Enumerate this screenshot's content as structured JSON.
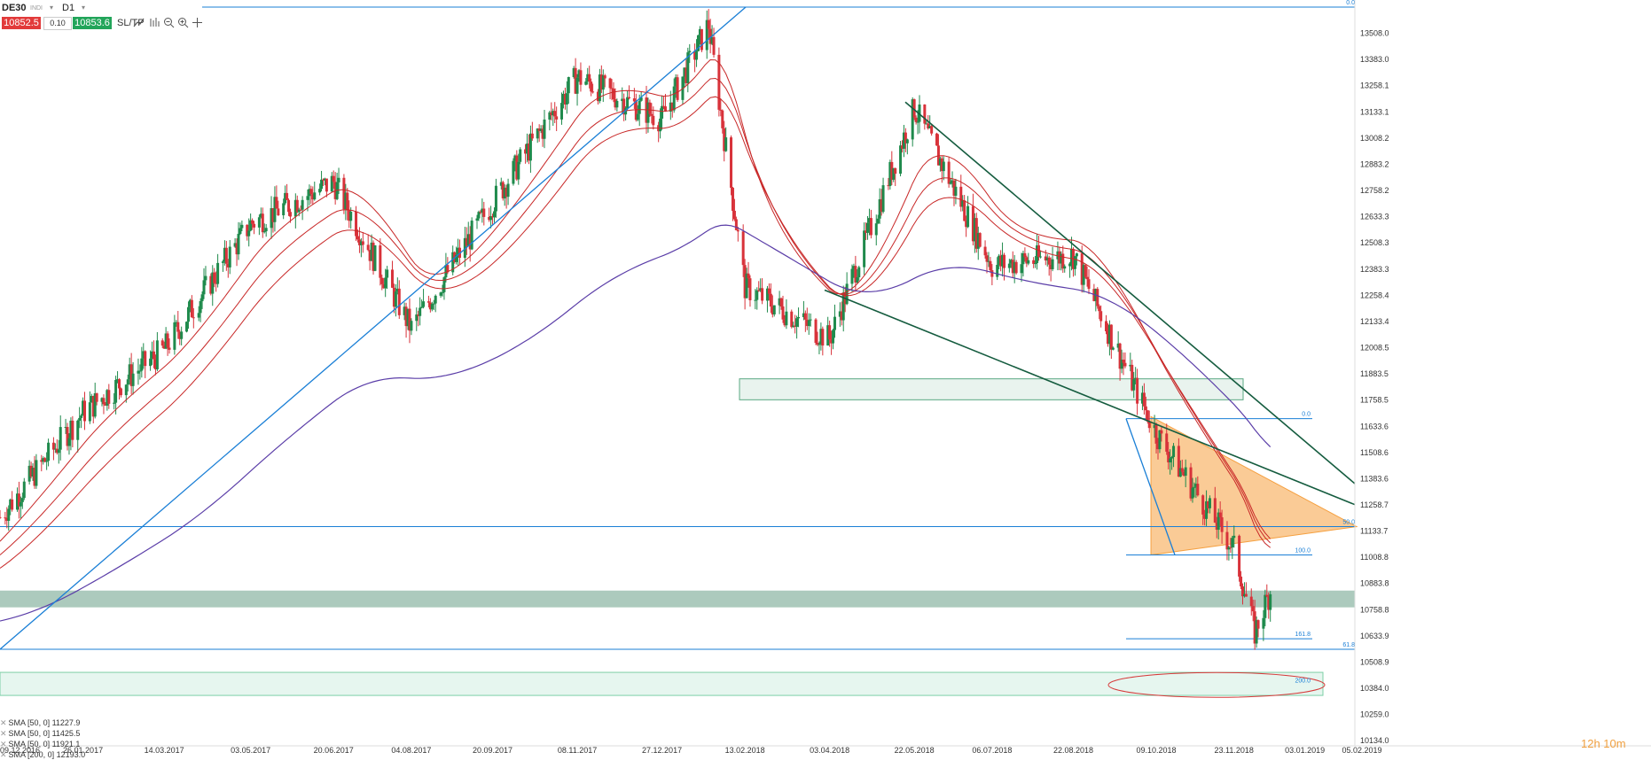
{
  "toolbar": {
    "symbol": "DE30",
    "symbol_sub": "INDI",
    "timeframe": "D1",
    "sell_price": "10852.5",
    "quantity": "0.10",
    "buy_price": "10853.6",
    "sltp_label": "SL/TP",
    "icons": [
      "line-tool-icon",
      "indicators-icon",
      "zoom-out-icon",
      "zoom-in-icon",
      "crosshair-icon"
    ]
  },
  "legend": [
    {
      "label": "SMA [50, 0] 11227.9"
    },
    {
      "label": "SMA [50, 0] 11425.5"
    },
    {
      "label": "SMA [50, 0] 11921.1"
    },
    {
      "label": "SMA [200, 0] 12193.0"
    }
  ],
  "timer": {
    "value": "12h 10m"
  },
  "colors": {
    "bull": "#1f8a4c",
    "bear": "#d8323a",
    "blue_line": "#1a7fd6",
    "dark_green": "#155c3f",
    "sma_red": "#c82828",
    "sma_purple": "#5b3ea8",
    "orange": "#f5a040",
    "support": "#7fad99",
    "ellipse": "#d63a3a"
  },
  "chart_data": {
    "type": "candlestick",
    "title": "",
    "xlabel": "",
    "ylabel": "",
    "ylim": [
      10134.9,
      13633.0
    ],
    "y_ticks": [
      "13508.0",
      "13383.0",
      "13258.1",
      "13133.1",
      "13008.2",
      "12883.2",
      "12758.2",
      "12633.3",
      "12508.3",
      "12383.3",
      "12258.4",
      "12133.4",
      "12008.5",
      "11883.5",
      "11758.5",
      "11633.6",
      "11508.6",
      "11383.6",
      "11258.7",
      "11133.7",
      "11008.8",
      "10883.8",
      "10758.8",
      "10633.9",
      "10508.9",
      "10384.0",
      "10259.0",
      "10134.0"
    ],
    "x_ticks": [
      "09.12.2016",
      "26.01.2017",
      "14.03.2017",
      "03.05.2017",
      "20.06.2017",
      "04.08.2017",
      "20.09.2017",
      "08.11.2017",
      "27.12.2017",
      "13.02.2018",
      "03.04.2018",
      "22.05.2018",
      "06.07.2018",
      "22.08.2018",
      "09.10.2018",
      "23.11.2018",
      "03.01.2019",
      "05.02.2019"
    ],
    "price_path": [
      [
        "09.12.2016",
        11200
      ],
      [
        "26.01.2017",
        11700
      ],
      [
        "14.03.2017",
        12000
      ],
      [
        "03.05.2017",
        12600
      ],
      [
        "20.06.2017",
        12800
      ],
      [
        "04.08.2017",
        12100
      ],
      [
        "20.09.2017",
        12700
      ],
      [
        "08.11.2017",
        13300
      ],
      [
        "27.12.2017",
        13100
      ],
      [
        "23.01.2018",
        13550
      ],
      [
        "13.02.2018",
        12300
      ],
      [
        "03.04.2018",
        12050
      ],
      [
        "22.05.2018",
        13150
      ],
      [
        "06.07.2018",
        12400
      ],
      [
        "22.08.2018",
        12450
      ],
      [
        "09.10.2018",
        11600
      ],
      [
        "23.11.2018",
        11050
      ],
      [
        "05.12.2018",
        10650
      ],
      [
        "14.12.2018",
        10850
      ]
    ],
    "moving_averages": [
      {
        "name": "SMA [50, 0]",
        "last": 11227.9
      },
      {
        "name": "SMA [50, 0]",
        "last": 11425.5
      },
      {
        "name": "SMA [50, 0]",
        "last": 11921.1
      },
      {
        "name": "SMA [200, 0]",
        "last": 12193.0
      }
    ],
    "fibonacci_labels": [
      {
        "label": "0.0",
        "price": 13633.0
      },
      {
        "label": "50.0",
        "price": 11155.0
      },
      {
        "label": "61.8",
        "price": 10570.0
      },
      {
        "label": "0.0",
        "price": 11670.0
      },
      {
        "label": "100.0",
        "price": 11020.0
      },
      {
        "label": "161.8",
        "price": 10620.0
      },
      {
        "label": "200.0",
        "price": 10400.0
      }
    ],
    "zones": [
      {
        "name": "support-zone",
        "from": 10770,
        "to": 10850
      },
      {
        "name": "resistance-zone",
        "from": 11760,
        "to": 11860
      },
      {
        "name": "target-zone",
        "from": 10350,
        "to": 10460
      }
    ],
    "grid": false,
    "legend_position": "bottom-left"
  }
}
